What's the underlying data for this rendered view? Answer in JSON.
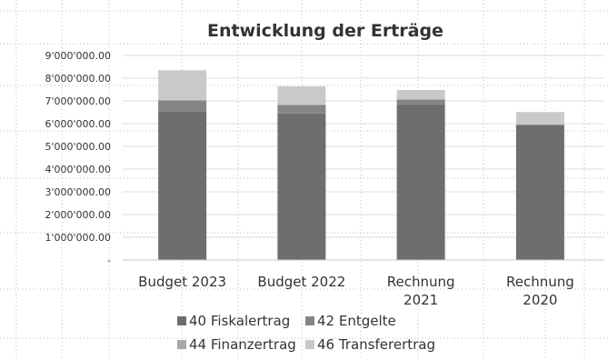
{
  "chart_data": {
    "type": "bar",
    "stacked": true,
    "title": "Entwicklung der Erträge",
    "categories": [
      "Budget 2023",
      "Budget 2022",
      "Rechnung 2021",
      "Rechnung 2020"
    ],
    "category_lines": [
      [
        "Budget 2023"
      ],
      [
        "Budget 2022"
      ],
      [
        "Rechnung",
        "2021"
      ],
      [
        "Rechnung",
        "2020"
      ]
    ],
    "series": [
      {
        "name": "40 Fiskalertrag",
        "color": "#6e6e6e",
        "values": [
          6550000,
          6450000,
          6850000,
          5950000
        ]
      },
      {
        "name": "42 Entgelte",
        "color": "#858585",
        "values": [
          450000,
          350000,
          200000,
          0
        ]
      },
      {
        "name": "44 Finanzertrag",
        "color": "#a8a8a8",
        "values": [
          50000,
          40000,
          30000,
          10000
        ]
      },
      {
        "name": "46 Transferertrag",
        "color": "#c9c9c9",
        "values": [
          1300000,
          800000,
          400000,
          550000
        ]
      }
    ],
    "yticks": [
      "-",
      "1'000'000.00",
      "2'000'000.00",
      "3'000'000.00",
      "4'000'000.00",
      "5'000'000.00",
      "6'000'000.00",
      "7'000'000.00",
      "8'000'000.00",
      "9'000'000.00"
    ],
    "ylim": [
      0,
      9000000
    ],
    "grid": true,
    "legend_position": "bottom"
  }
}
